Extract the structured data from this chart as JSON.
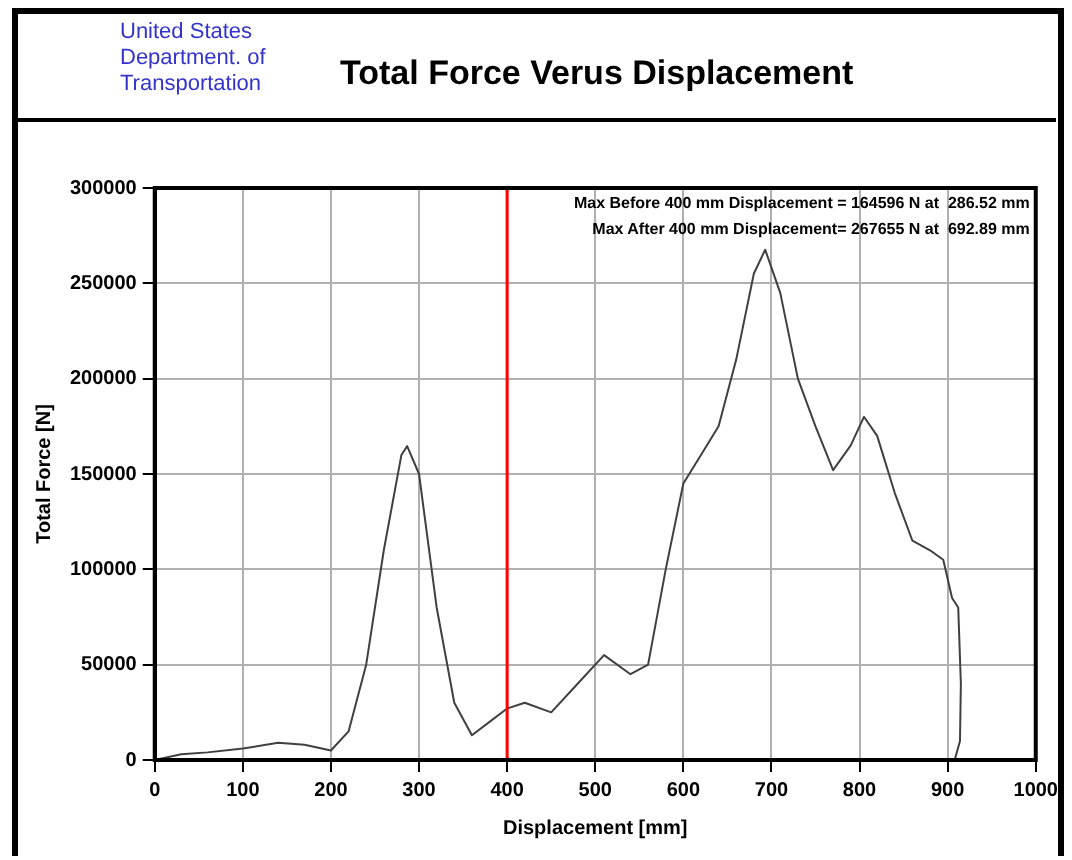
{
  "chart_data": {
    "type": "line",
    "title": "Total Force Verus Displacement",
    "xlabel": "Displacement [mm]",
    "ylabel": "Total Force [N]",
    "annotations": [
      "United States Department. of Transportation",
      "Max Before 400 mm Displacement = 164596 N at  286.52 mm",
      "Max After 400 mm Displacement= 267655 N at  692.89 mm"
    ],
    "x": [
      0,
      30,
      60,
      100,
      140,
      170,
      200,
      220,
      240,
      260,
      280,
      286.52,
      300,
      320,
      340,
      360,
      380,
      400,
      420,
      450,
      480,
      510,
      540,
      560,
      580,
      600,
      620,
      640,
      660,
      680,
      692.89,
      710,
      730,
      750,
      770,
      790,
      805,
      820,
      840,
      860,
      880,
      895,
      905,
      912,
      915,
      914,
      908
    ],
    "series": [
      {
        "color": "#404040",
        "values": [
          0,
          3000,
          4000,
          6000,
          9000,
          8000,
          5000,
          15000,
          50000,
          110000,
          160000,
          164596,
          150000,
          80000,
          30000,
          13000,
          20000,
          27000,
          30000,
          25000,
          40000,
          55000,
          45000,
          50000,
          100000,
          145000,
          160000,
          175000,
          210000,
          255000,
          267655,
          245000,
          200000,
          175000,
          152000,
          165000,
          180000,
          170000,
          140000,
          115000,
          110000,
          105000,
          85000,
          80000,
          40000,
          10000,
          0
        ]
      }
    ],
    "xlim": [
      0,
      1000
    ],
    "xticks": [
      0,
      100,
      200,
      300,
      400,
      500,
      600,
      700,
      800,
      900,
      1000
    ],
    "ylim": [
      0,
      300000
    ],
    "yticks": [
      0,
      50000,
      100000,
      150000,
      200000,
      250000,
      300000
    ],
    "ref_lines": [
      {
        "axis": "x",
        "value": 400,
        "color": "#ff0000"
      }
    ],
    "grid": true,
    "legend": false,
    "marker": "none",
    "line_style": "solid"
  }
}
